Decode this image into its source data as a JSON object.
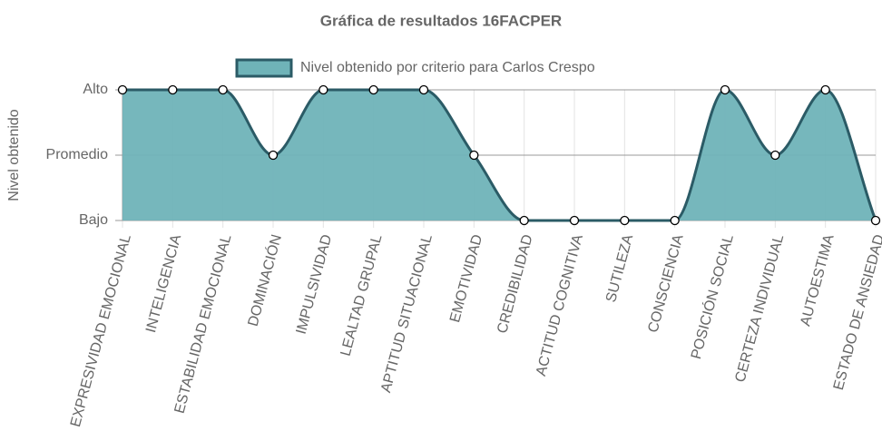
{
  "chart_data": {
    "type": "area",
    "title": "Gráfica de resultados 16FACPER",
    "y_label": "Nivel obtenido",
    "categories": [
      "EXPRESIVIDAD EMOCIONAL",
      "INTELIGENCIA",
      "ESTABILIDAD EMOCIONAL",
      "DOMINACIÓN",
      "IMPULSIVIDAD",
      "LEALTAD GRUPAL",
      "APTITUD SITUACIONAL",
      "EMOTIVIDAD",
      "CREDIBILIDAD",
      "ACTITUD COGNITIVA",
      "SUTILEZA",
      "CONSCIENCIA",
      "POSICIÓN SOCIAL",
      "CERTEZA INDIVIDUAL",
      "AUTOESTIMA",
      "ESTADO DE ANSIEDAD"
    ],
    "series": [
      {
        "name": "Nivel obtenido por criterio para Carlos Crespo",
        "color": "#6fb3b8",
        "line_color": "#2b5b66",
        "values": [
          3,
          3,
          3,
          2,
          3,
          3,
          3,
          2,
          1,
          1,
          1,
          1,
          3,
          2,
          3,
          1
        ]
      }
    ],
    "ylim": [
      1,
      3
    ],
    "yticks": [
      {
        "value": 1,
        "label": "Bajo"
      },
      {
        "value": 2,
        "label": "Promedio"
      },
      {
        "value": 3,
        "label": "Alto"
      }
    ],
    "grid": true,
    "legend": "top"
  }
}
